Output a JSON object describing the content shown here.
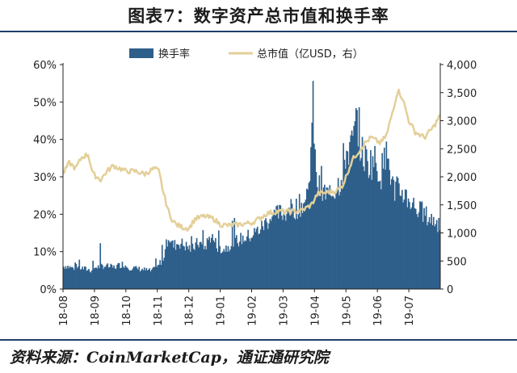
{
  "title": "图表7：数字资产总市值和换手率",
  "source": "资料来源：CoinMarketCap，通证通研究院",
  "chart_data": {
    "type": "bar+line",
    "legend": [
      {
        "name": "换手率",
        "kind": "bar",
        "color": "#2e5f8a"
      },
      {
        "name": "总市值（亿USD，右）",
        "kind": "line",
        "color": "#e3cf98"
      }
    ],
    "legend_placement": "top-center",
    "grid": false,
    "x_categories": [
      "18-08",
      "18-09",
      "18-10",
      "18-11",
      "18-12",
      "19-01",
      "19-02",
      "19-03",
      "19-04",
      "19-05",
      "19-06",
      "19-07"
    ],
    "y_left": {
      "ticks": [
        "0%",
        "10%",
        "20%",
        "30%",
        "40%",
        "50%",
        "60%"
      ],
      "range": [
        0,
        60
      ]
    },
    "y_right": {
      "ticks": [
        "0",
        "500",
        "1,000",
        "1,500",
        "2,000",
        "2,500",
        "3,000",
        "3,500",
        "4,000"
      ],
      "range": [
        0,
        4000
      ]
    },
    "turnover_pct_anchors": [
      [
        0,
        6.2
      ],
      [
        0.1,
        6.5
      ],
      [
        0.3,
        5.8
      ],
      [
        0.5,
        6
      ],
      [
        0.9,
        5.2
      ],
      [
        1,
        6
      ],
      [
        1.3,
        6.5
      ],
      [
        1.6,
        6
      ],
      [
        1.9,
        7
      ],
      [
        2.1,
        6
      ],
      [
        2.5,
        5.5
      ],
      [
        2.8,
        5
      ],
      [
        3,
        6
      ],
      [
        3.2,
        9
      ],
      [
        3.35,
        15
      ],
      [
        3.5,
        12
      ],
      [
        3.7,
        13
      ],
      [
        3.9,
        12
      ],
      [
        4.1,
        11
      ],
      [
        4.3,
        13
      ],
      [
        4.5,
        11.5
      ],
      [
        4.7,
        15
      ],
      [
        4.9,
        12
      ],
      [
        5.1,
        11
      ],
      [
        5.4,
        13
      ],
      [
        5.7,
        14
      ],
      [
        6,
        15
      ],
      [
        6.3,
        17
      ],
      [
        6.6,
        20
      ],
      [
        6.9,
        21
      ],
      [
        7.2,
        22
      ],
      [
        7.5,
        23
      ],
      [
        7.8,
        25
      ],
      [
        7.95,
        51
      ],
      [
        8.05,
        30
      ],
      [
        8.2,
        27
      ],
      [
        8.5,
        26
      ],
      [
        8.8,
        30
      ],
      [
        9,
        38
      ],
      [
        9.2,
        40
      ],
      [
        9.35,
        47
      ],
      [
        9.5,
        38
      ],
      [
        9.7,
        35
      ],
      [
        9.9,
        36
      ],
      [
        10.1,
        32
      ],
      [
        10.3,
        38
      ],
      [
        10.5,
        28
      ],
      [
        10.8,
        27
      ],
      [
        11,
        25
      ],
      [
        11.3,
        22
      ],
      [
        11.6,
        20
      ],
      [
        12,
        18
      ]
    ],
    "market_cap_anchors": [
      [
        0,
        2050
      ],
      [
        0.2,
        2250
      ],
      [
        0.4,
        2150
      ],
      [
        0.6,
        2350
      ],
      [
        0.8,
        2400
      ],
      [
        0.95,
        2050
      ],
      [
        1.2,
        1950
      ],
      [
        1.4,
        2100
      ],
      [
        1.6,
        2200
      ],
      [
        1.8,
        2150
      ],
      [
        2,
        2100
      ],
      [
        2.3,
        2100
      ],
      [
        2.6,
        2050
      ],
      [
        2.9,
        2150
      ],
      [
        3.05,
        2100
      ],
      [
        3.2,
        1700
      ],
      [
        3.4,
        1300
      ],
      [
        3.6,
        1150
      ],
      [
        3.8,
        1100
      ],
      [
        4,
        1080
      ],
      [
        4.2,
        1250
      ],
      [
        4.5,
        1300
      ],
      [
        4.8,
        1250
      ],
      [
        5,
        1150
      ],
      [
        5.3,
        1130
      ],
      [
        5.6,
        1150
      ],
      [
        6,
        1180
      ],
      [
        6.2,
        1240
      ],
      [
        6.5,
        1350
      ],
      [
        6.8,
        1380
      ],
      [
        7.2,
        1380
      ],
      [
        7.6,
        1400
      ],
      [
        7.9,
        1500
      ],
      [
        8.1,
        1700
      ],
      [
        8.4,
        1720
      ],
      [
        8.7,
        1750
      ],
      [
        8.9,
        1850
      ],
      [
        9.2,
        2300
      ],
      [
        9.4,
        2450
      ],
      [
        9.6,
        2600
      ],
      [
        9.8,
        2700
      ],
      [
        10.1,
        2600
      ],
      [
        10.3,
        2750
      ],
      [
        10.5,
        3200
      ],
      [
        10.65,
        3550
      ],
      [
        10.8,
        3400
      ],
      [
        11,
        3000
      ],
      [
        11.2,
        2800
      ],
      [
        11.5,
        2700
      ],
      [
        11.8,
        2900
      ],
      [
        12,
        3100
      ]
    ]
  }
}
